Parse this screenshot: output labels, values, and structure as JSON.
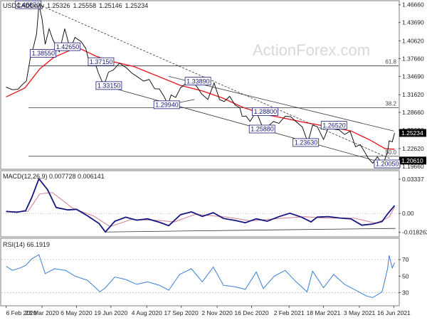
{
  "chart_data": {
    "type": "line",
    "symbol": "USDCAD",
    "timeframe": "Daily",
    "ohlc": {
      "open": "1.25326",
      "high": "1.25558",
      "low": "1.25146",
      "close": "1.25234"
    },
    "watermark": "ActionForex.com",
    "colors": {
      "price": "#000000",
      "ma": "#e8141b",
      "channel": "#222222",
      "trend": "#333333",
      "macd": "#151580",
      "signal": "#d08090",
      "rsi": "#3a7fd5",
      "label_fill": "#ffffff",
      "label_border": "#1a1a7a",
      "current_price_bg": "#000000",
      "current_price_fg": "#ffffff"
    },
    "price_panel": {
      "y_ticks": [
        "1.46660",
        "1.43690",
        "1.40620",
        "1.37660",
        "1.34690",
        "1.31620",
        "1.28660",
        "1.25690",
        "1.22620",
        "1.19660"
      ],
      "y_tick_values": [
        1.4666,
        1.4369,
        1.4062,
        1.3766,
        1.3469,
        1.3162,
        1.2866,
        1.2569,
        1.2262,
        1.1966
      ],
      "ylim": [
        1.1928,
        1.4722
      ],
      "current_price": "1.25234",
      "current_price_value": 1.25234,
      "last_price": "1.20610",
      "last_price_value": 1.2061,
      "fib_levels": [
        {
          "label": "61.8",
          "value": 1.3644
        },
        {
          "label": "38.2",
          "value": 1.2943
        },
        {
          "label": "50.0",
          "value": 1.2133
        }
      ],
      "annotations": [
        {
          "text": "1.46670",
          "date": "2020-03-19",
          "value": 1.4667,
          "label_date": "2020-02-18",
          "label_value": 1.4667
        },
        {
          "text": "1.38550",
          "date": "2020-03-09",
          "value": 1.3855,
          "label_date": "2020-03-08",
          "label_value": 1.3855
        },
        {
          "text": "1.42650",
          "date": "2020-04-21",
          "value": 1.4265,
          "label_date": "2020-04-08",
          "label_value": 1.3965
        },
        {
          "text": "1.37150",
          "date": "2020-05-22",
          "value": 1.3715,
          "label_date": "2020-05-21",
          "label_value": 1.3715
        },
        {
          "text": "1.33150",
          "date": "2020-06-10",
          "value": 1.3315,
          "label_date": "2020-05-31",
          "label_value": 1.3315
        },
        {
          "text": "1.29940",
          "date": "2020-08-31",
          "value": 1.2994,
          "label_date": "2020-08-13",
          "label_value": 1.2994
        },
        {
          "text": "1.33890",
          "date": "2020-09-30",
          "value": 1.3389,
          "label_date": "2020-09-22",
          "label_value": 1.3389
        },
        {
          "text": "1.28800",
          "date": "2020-12-22",
          "value": 1.288,
          "label_date": "2020-12-17",
          "label_value": 1.288
        },
        {
          "text": "1.25880",
          "date": "2020-12-31",
          "value": 1.2588,
          "label_date": "2020-12-13",
          "label_value": 1.2588
        },
        {
          "text": "1.26520",
          "date": "2021-03-04",
          "value": 1.2652,
          "label_date": "2021-03-15",
          "label_value": 1.2652
        },
        {
          "text": "1.23630",
          "date": "2021-02-26",
          "value": 1.2363,
          "label_date": "2021-02-07",
          "label_value": 1.2363
        },
        {
          "text": "1.20050",
          "date": "2021-06-01",
          "value": 1.2005,
          "label_date": "2021-05-22",
          "label_value": 1.2005
        }
      ],
      "trend_lines": [
        {
          "from": {
            "date": "2020-03-19",
            "value": 1.4667
          },
          "to": {
            "date": "2021-06-11",
            "value": 1.2095
          }
        },
        {
          "from": {
            "date": "2020-09-01",
            "value": 1.3469
          },
          "to": {
            "date": "2021-06-16",
            "value": 1.2555
          }
        },
        {
          "from": {
            "date": "2020-06-10",
            "value": 1.3315
          },
          "to": {
            "date": "2021-06-18",
            "value": 1.1966
          }
        },
        {
          "from": {
            "date": "2020-08-31",
            "value": 1.2994
          },
          "to": {
            "date": "2020-10-04",
            "value": 1.3083
          }
        }
      ],
      "price_points": [
        [
          "2020-02-06",
          1.329
        ],
        [
          "2020-02-14",
          1.3245
        ],
        [
          "2020-02-21",
          1.3252
        ],
        [
          "2020-02-27",
          1.3335
        ],
        [
          "2020-03-03",
          1.339
        ],
        [
          "2020-03-09",
          1.3855
        ],
        [
          "2020-03-12",
          1.396
        ],
        [
          "2020-03-16",
          1.418
        ],
        [
          "2020-03-19",
          1.4667
        ],
        [
          "2020-03-23",
          1.443
        ],
        [
          "2020-03-27",
          1.4005
        ],
        [
          "2020-04-01",
          1.4265
        ],
        [
          "2020-04-06",
          1.4075
        ],
        [
          "2020-04-14",
          1.388
        ],
        [
          "2020-04-21",
          1.4265
        ],
        [
          "2020-04-28",
          1.392
        ],
        [
          "2020-05-04",
          1.412
        ],
        [
          "2020-05-12",
          1.405
        ],
        [
          "2020-05-18",
          1.3935
        ],
        [
          "2020-05-22",
          1.3715
        ],
        [
          "2020-05-28",
          1.3762
        ],
        [
          "2020-06-03",
          1.3528
        ],
        [
          "2020-06-10",
          1.3315
        ],
        [
          "2020-06-16",
          1.354
        ],
        [
          "2020-06-22",
          1.3575
        ],
        [
          "2020-06-30",
          1.369
        ],
        [
          "2020-07-09",
          1.361
        ],
        [
          "2020-07-16",
          1.3522
        ],
        [
          "2020-07-23",
          1.3462
        ],
        [
          "2020-07-31",
          1.3389
        ],
        [
          "2020-08-07",
          1.3418
        ],
        [
          "2020-08-14",
          1.3262
        ],
        [
          "2020-08-20",
          1.3258
        ],
        [
          "2020-08-26",
          1.3134
        ],
        [
          "2020-08-31",
          1.2994
        ],
        [
          "2020-09-04",
          1.3158
        ],
        [
          "2020-09-10",
          1.3117
        ],
        [
          "2020-09-16",
          1.3274
        ],
        [
          "2020-09-23",
          1.3352
        ],
        [
          "2020-09-30",
          1.3389
        ],
        [
          "2020-10-07",
          1.3299
        ],
        [
          "2020-10-13",
          1.3176
        ],
        [
          "2020-10-21",
          1.3082
        ],
        [
          "2020-10-29",
          1.3358
        ],
        [
          "2020-11-05",
          1.3081
        ],
        [
          "2020-11-11",
          1.3048
        ],
        [
          "2020-11-18",
          1.3135
        ],
        [
          "2020-11-25",
          1.2989
        ],
        [
          "2020-12-01",
          1.2945
        ],
        [
          "2020-12-04",
          1.2799
        ],
        [
          "2020-12-09",
          1.2805
        ],
        [
          "2020-12-14",
          1.2716
        ],
        [
          "2020-12-22",
          1.288
        ],
        [
          "2020-12-31",
          1.2588
        ],
        [
          "2021-01-06",
          1.2636
        ],
        [
          "2021-01-13",
          1.2715
        ],
        [
          "2021-01-20",
          1.2683
        ],
        [
          "2021-01-28",
          1.2802
        ],
        [
          "2021-02-04",
          1.2795
        ],
        [
          "2021-02-11",
          1.2711
        ],
        [
          "2021-02-19",
          1.2622
        ],
        [
          "2021-02-26",
          1.2363
        ],
        [
          "2021-03-04",
          1.2652
        ],
        [
          "2021-03-10",
          1.2628
        ],
        [
          "2021-03-18",
          1.2413
        ],
        [
          "2021-03-24",
          1.2599
        ],
        [
          "2021-03-31",
          1.2585
        ],
        [
          "2021-04-07",
          1.2574
        ],
        [
          "2021-04-14",
          1.2497
        ],
        [
          "2021-04-21",
          1.2551
        ],
        [
          "2021-04-28",
          1.2292
        ],
        [
          "2021-05-04",
          1.2326
        ],
        [
          "2021-05-10",
          1.2198
        ],
        [
          "2021-05-14",
          1.2104
        ],
        [
          "2021-05-20",
          1.2017
        ],
        [
          "2021-05-26",
          1.2124
        ],
        [
          "2021-06-01",
          1.2005
        ],
        [
          "2021-06-04",
          1.2062
        ],
        [
          "2021-06-08",
          1.2206
        ],
        [
          "2021-06-10",
          1.2391
        ],
        [
          "2021-06-14",
          1.2375
        ],
        [
          "2021-06-17",
          1.2523
        ]
      ],
      "ma_points": [
        [
          "2020-02-06",
          1.3125
        ],
        [
          "2020-03-01",
          1.3275
        ],
        [
          "2020-03-20",
          1.3592
        ],
        [
          "2020-04-07",
          1.3788
        ],
        [
          "2020-04-28",
          1.3905
        ],
        [
          "2020-05-12",
          1.3925
        ],
        [
          "2020-05-31",
          1.3806
        ],
        [
          "2020-06-20",
          1.3718
        ],
        [
          "2020-07-18",
          1.3635
        ],
        [
          "2020-08-18",
          1.3472
        ],
        [
          "2020-09-16",
          1.3318
        ],
        [
          "2020-10-14",
          1.3225
        ],
        [
          "2020-11-09",
          1.3106
        ],
        [
          "2020-12-05",
          1.295
        ],
        [
          "2020-12-31",
          1.2838
        ],
        [
          "2021-01-25",
          1.2774
        ],
        [
          "2021-02-22",
          1.2699
        ],
        [
          "2021-03-23",
          1.2631
        ],
        [
          "2021-04-22",
          1.2557
        ],
        [
          "2021-05-17",
          1.2401
        ],
        [
          "2021-06-05",
          1.2259
        ],
        [
          "2021-06-17",
          1.2251
        ]
      ]
    },
    "macd_panel": {
      "label": "MACD(12,26,9) 0.007728 0.006141",
      "y_ticks": [
        "0.03337",
        "0.00",
        "-0.018262"
      ],
      "y_tick_values": [
        0.03337,
        0.0,
        -0.018262
      ],
      "zero_line": 0.0,
      "ylim": [
        -0.022,
        0.041
      ],
      "macd_points": [
        [
          "2020-02-06",
          0.002
        ],
        [
          "2020-02-20",
          0.0012
        ],
        [
          "2020-03-02",
          0.0028
        ],
        [
          "2020-03-10",
          0.0158
        ],
        [
          "2020-03-19",
          0.0338
        ],
        [
          "2020-03-30",
          0.0232
        ],
        [
          "2020-04-10",
          0.0058
        ],
        [
          "2020-04-25",
          0.0035
        ],
        [
          "2020-05-06",
          0.0041
        ],
        [
          "2020-05-20",
          -0.0022
        ],
        [
          "2020-06-04",
          -0.0098
        ],
        [
          "2020-06-12",
          -0.018
        ],
        [
          "2020-06-24",
          -0.0075
        ],
        [
          "2020-07-08",
          -0.0036
        ],
        [
          "2020-07-22",
          -0.0065
        ],
        [
          "2020-08-05",
          -0.0052
        ],
        [
          "2020-08-20",
          -0.0085
        ],
        [
          "2020-09-01",
          -0.0118
        ],
        [
          "2020-09-16",
          -0.0012
        ],
        [
          "2020-09-30",
          0.0016
        ],
        [
          "2020-10-14",
          -0.0028
        ],
        [
          "2020-10-28",
          0.0008
        ],
        [
          "2020-11-10",
          -0.0048
        ],
        [
          "2020-11-25",
          -0.0068
        ],
        [
          "2020-12-08",
          -0.009
        ],
        [
          "2020-12-22",
          -0.0052
        ],
        [
          "2021-01-05",
          -0.0075
        ],
        [
          "2021-01-20",
          -0.0031
        ],
        [
          "2021-02-03",
          0.0003
        ],
        [
          "2021-02-18",
          -0.0036
        ],
        [
          "2021-03-02",
          -0.0082
        ],
        [
          "2021-03-10",
          -0.0035
        ],
        [
          "2021-03-24",
          -0.003
        ],
        [
          "2021-04-08",
          -0.0044
        ],
        [
          "2021-04-22",
          -0.0052
        ],
        [
          "2021-05-06",
          -0.0114
        ],
        [
          "2021-05-20",
          -0.0102
        ],
        [
          "2021-06-01",
          -0.0078
        ],
        [
          "2021-06-08",
          -0.0005
        ],
        [
          "2021-06-17",
          0.0077
        ]
      ],
      "signal_points": [
        [
          "2020-02-06",
          0.0016
        ],
        [
          "2020-03-05",
          0.002
        ],
        [
          "2020-03-20",
          0.019
        ],
        [
          "2020-04-05",
          0.0205
        ],
        [
          "2020-05-01",
          0.0052
        ],
        [
          "2020-05-28",
          -0.0025
        ],
        [
          "2020-06-18",
          -0.0128
        ],
        [
          "2020-07-15",
          -0.0058
        ],
        [
          "2020-08-20",
          -0.0068
        ],
        [
          "2020-09-08",
          -0.0082
        ],
        [
          "2020-10-05",
          -0.0008
        ],
        [
          "2020-11-15",
          -0.0036
        ],
        [
          "2020-12-15",
          -0.0072
        ],
        [
          "2021-01-25",
          -0.0045
        ],
        [
          "2021-02-22",
          -0.0032
        ],
        [
          "2021-03-20",
          -0.0045
        ],
        [
          "2021-04-26",
          -0.0045
        ],
        [
          "2021-05-24",
          -0.0095
        ],
        [
          "2021-06-10",
          -0.0035
        ],
        [
          "2021-06-17",
          0.0061
        ]
      ],
      "trend_line": {
        "from": {
          "date": "2020-06-12",
          "value": -0.018
        },
        "to": {
          "date": "2021-06-18",
          "value": -0.0145
        }
      }
    },
    "rsi_panel": {
      "label": "RSI(14) 66.1919",
      "y_ticks": [
        "70",
        "50",
        "30"
      ],
      "ylim": [
        15,
        95
      ],
      "levels": [
        70,
        50,
        30
      ],
      "rsi_points": [
        [
          "2020-02-06",
          62
        ],
        [
          "2020-02-14",
          57
        ],
        [
          "2020-02-24",
          60
        ],
        [
          "2020-03-02",
          63
        ],
        [
          "2020-03-10",
          71
        ],
        [
          "2020-03-19",
          76
        ],
        [
          "2020-03-27",
          53
        ],
        [
          "2020-04-08",
          59
        ],
        [
          "2020-04-22",
          57
        ],
        [
          "2020-05-04",
          50
        ],
        [
          "2020-05-20",
          45
        ],
        [
          "2020-06-05",
          31
        ],
        [
          "2020-06-12",
          36
        ],
        [
          "2020-06-24",
          49
        ],
        [
          "2020-07-08",
          46
        ],
        [
          "2020-07-22",
          40
        ],
        [
          "2020-08-05",
          43
        ],
        [
          "2020-08-20",
          39
        ],
        [
          "2020-09-01",
          33
        ],
        [
          "2020-09-15",
          52
        ],
        [
          "2020-09-30",
          59
        ],
        [
          "2020-10-14",
          43
        ],
        [
          "2020-10-28",
          61
        ],
        [
          "2020-11-10",
          39
        ],
        [
          "2020-11-25",
          37
        ],
        [
          "2020-12-08",
          34
        ],
        [
          "2020-12-22",
          55
        ],
        [
          "2020-12-31",
          35
        ],
        [
          "2021-01-14",
          50
        ],
        [
          "2021-01-28",
          57
        ],
        [
          "2021-02-10",
          44
        ],
        [
          "2021-02-25",
          31
        ],
        [
          "2021-03-04",
          56
        ],
        [
          "2021-03-18",
          36
        ],
        [
          "2021-03-31",
          52
        ],
        [
          "2021-04-14",
          40
        ],
        [
          "2021-04-28",
          33
        ],
        [
          "2021-05-12",
          26
        ],
        [
          "2021-05-20",
          24
        ],
        [
          "2021-06-01",
          31
        ],
        [
          "2021-06-08",
          59
        ],
        [
          "2021-06-10",
          75
        ],
        [
          "2021-06-14",
          60
        ],
        [
          "2021-06-17",
          66.2
        ]
      ]
    },
    "x_axis": {
      "ticks": [
        "6 Feb 2020",
        "23 Mar 2020",
        "6 May 2020",
        "19 Jun 2020",
        "4 Aug 2020",
        "17 Sep 2020",
        "2 Nov 2020",
        "16 Dec 2020",
        "2 Feb 2021",
        "18 Mar 2021",
        "3 May 2021",
        "16 Jun 2021"
      ],
      "tick_dates": [
        "2020-02-06",
        "2020-03-23",
        "2020-05-06",
        "2020-06-19",
        "2020-08-04",
        "2020-09-17",
        "2020-11-02",
        "2020-12-16",
        "2021-02-02",
        "2021-03-18",
        "2021-05-03",
        "2021-06-16"
      ],
      "range": [
        "2020-01-31",
        "2021-06-22"
      ]
    }
  }
}
